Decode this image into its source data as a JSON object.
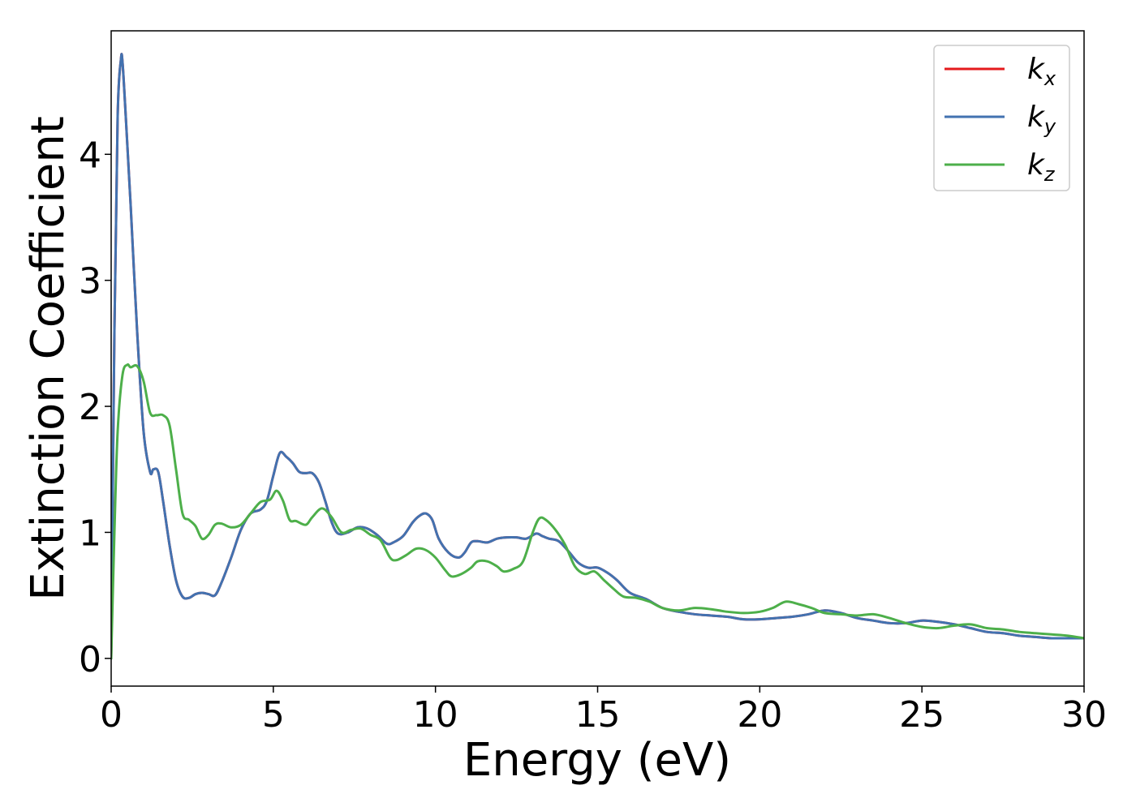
{
  "chart_data": {
    "type": "line",
    "xlabel": "Energy (eV)",
    "ylabel": "Extinction Coefficient",
    "xlim": [
      0,
      30
    ],
    "ylim": [
      -0.22,
      4.98
    ],
    "xticks": [
      "0",
      "5",
      "10",
      "15",
      "20",
      "25",
      "30"
    ],
    "yticks": [
      "0",
      "1",
      "2",
      "3",
      "4"
    ],
    "grid": false,
    "legend_position": "top-right",
    "series": [
      {
        "name": "k",
        "subscript": "x",
        "color": "#e41a1c",
        "x": [
          0,
          0.1,
          0.2,
          0.3,
          0.35,
          0.45,
          0.6,
          0.8,
          1.0,
          1.2,
          1.3,
          1.45,
          1.6,
          1.8,
          2.0,
          2.2,
          2.4,
          2.6,
          2.8,
          3.0,
          3.2,
          3.4,
          3.7,
          4.0,
          4.3,
          4.6,
          4.8,
          5.0,
          5.2,
          5.4,
          5.6,
          5.8,
          6.0,
          6.2,
          6.4,
          6.6,
          6.8,
          7.0,
          7.3,
          7.6,
          7.9,
          8.2,
          8.5,
          8.7,
          9.0,
          9.3,
          9.5,
          9.7,
          9.9,
          10.1,
          10.4,
          10.7,
          10.9,
          11.1,
          11.3,
          11.6,
          11.9,
          12.2,
          12.5,
          12.8,
          13.1,
          13.3,
          13.5,
          13.8,
          14.1,
          14.4,
          14.7,
          15.0,
          15.3,
          15.6,
          16.0,
          16.5,
          17.0,
          17.5,
          18.0,
          18.5,
          19.0,
          19.5,
          20.0,
          20.5,
          21.0,
          21.5,
          22.0,
          22.5,
          23.0,
          23.5,
          24.0,
          24.5,
          25.0,
          25.5,
          26.0,
          26.5,
          27.0,
          27.5,
          28.0,
          28.5,
          29.0,
          29.5,
          30.0
        ],
        "y": [
          0.0,
          2.6,
          4.3,
          4.75,
          4.73,
          4.3,
          3.6,
          2.6,
          1.8,
          1.48,
          1.5,
          1.48,
          1.25,
          0.9,
          0.62,
          0.49,
          0.48,
          0.51,
          0.52,
          0.51,
          0.5,
          0.6,
          0.8,
          1.02,
          1.15,
          1.18,
          1.25,
          1.45,
          1.63,
          1.6,
          1.55,
          1.48,
          1.47,
          1.47,
          1.4,
          1.25,
          1.08,
          0.99,
          1.0,
          1.04,
          1.03,
          0.98,
          0.91,
          0.92,
          0.97,
          1.08,
          1.13,
          1.15,
          1.1,
          0.95,
          0.84,
          0.8,
          0.84,
          0.92,
          0.93,
          0.92,
          0.95,
          0.96,
          0.96,
          0.95,
          0.99,
          0.97,
          0.95,
          0.93,
          0.85,
          0.76,
          0.72,
          0.72,
          0.68,
          0.62,
          0.52,
          0.47,
          0.4,
          0.37,
          0.35,
          0.34,
          0.33,
          0.31,
          0.31,
          0.32,
          0.33,
          0.35,
          0.38,
          0.36,
          0.32,
          0.3,
          0.28,
          0.28,
          0.3,
          0.29,
          0.27,
          0.24,
          0.21,
          0.2,
          0.18,
          0.17,
          0.16,
          0.16,
          0.16
        ]
      },
      {
        "name": "k",
        "subscript": "y",
        "color": "#4272b0",
        "x": [
          0,
          0.1,
          0.2,
          0.3,
          0.35,
          0.45,
          0.6,
          0.8,
          1.0,
          1.2,
          1.3,
          1.45,
          1.6,
          1.8,
          2.0,
          2.2,
          2.4,
          2.6,
          2.8,
          3.0,
          3.2,
          3.4,
          3.7,
          4.0,
          4.3,
          4.6,
          4.8,
          5.0,
          5.2,
          5.4,
          5.6,
          5.8,
          6.0,
          6.2,
          6.4,
          6.6,
          6.8,
          7.0,
          7.3,
          7.6,
          7.9,
          8.2,
          8.5,
          8.7,
          9.0,
          9.3,
          9.5,
          9.7,
          9.9,
          10.1,
          10.4,
          10.7,
          10.9,
          11.1,
          11.3,
          11.6,
          11.9,
          12.2,
          12.5,
          12.8,
          13.1,
          13.3,
          13.5,
          13.8,
          14.1,
          14.4,
          14.7,
          15.0,
          15.3,
          15.6,
          16.0,
          16.5,
          17.0,
          17.5,
          18.0,
          18.5,
          19.0,
          19.5,
          20.0,
          20.5,
          21.0,
          21.5,
          22.0,
          22.5,
          23.0,
          23.5,
          24.0,
          24.5,
          25.0,
          25.5,
          26.0,
          26.5,
          27.0,
          27.5,
          28.0,
          28.5,
          29.0,
          29.5,
          30.0
        ],
        "y": [
          0.0,
          2.6,
          4.3,
          4.75,
          4.73,
          4.3,
          3.6,
          2.6,
          1.8,
          1.48,
          1.5,
          1.48,
          1.25,
          0.9,
          0.62,
          0.49,
          0.48,
          0.51,
          0.52,
          0.51,
          0.5,
          0.6,
          0.8,
          1.02,
          1.15,
          1.18,
          1.25,
          1.45,
          1.63,
          1.6,
          1.55,
          1.48,
          1.47,
          1.47,
          1.4,
          1.25,
          1.08,
          0.99,
          1.0,
          1.04,
          1.03,
          0.98,
          0.91,
          0.92,
          0.97,
          1.08,
          1.13,
          1.15,
          1.1,
          0.95,
          0.84,
          0.8,
          0.84,
          0.92,
          0.93,
          0.92,
          0.95,
          0.96,
          0.96,
          0.95,
          0.99,
          0.97,
          0.95,
          0.93,
          0.85,
          0.76,
          0.72,
          0.72,
          0.68,
          0.62,
          0.52,
          0.47,
          0.4,
          0.37,
          0.35,
          0.34,
          0.33,
          0.31,
          0.31,
          0.32,
          0.33,
          0.35,
          0.38,
          0.36,
          0.32,
          0.3,
          0.28,
          0.28,
          0.3,
          0.29,
          0.27,
          0.24,
          0.21,
          0.2,
          0.18,
          0.17,
          0.16,
          0.16,
          0.16
        ]
      },
      {
        "name": "k",
        "subscript": "z",
        "color": "#4daf4a",
        "x": [
          0,
          0.1,
          0.2,
          0.35,
          0.5,
          0.6,
          0.8,
          1.0,
          1.2,
          1.4,
          1.6,
          1.8,
          2.0,
          2.2,
          2.4,
          2.6,
          2.8,
          3.0,
          3.2,
          3.4,
          3.7,
          4.0,
          4.3,
          4.6,
          4.9,
          5.1,
          5.3,
          5.5,
          5.7,
          6.0,
          6.2,
          6.5,
          6.8,
          7.1,
          7.4,
          7.7,
          8.0,
          8.3,
          8.6,
          8.8,
          9.1,
          9.4,
          9.7,
          10.0,
          10.3,
          10.5,
          10.8,
          11.1,
          11.3,
          11.6,
          11.9,
          12.1,
          12.4,
          12.7,
          13.0,
          13.2,
          13.4,
          13.7,
          14.0,
          14.3,
          14.6,
          14.9,
          15.2,
          15.5,
          15.8,
          16.2,
          16.6,
          17.0,
          17.5,
          18.0,
          18.5,
          19.0,
          19.5,
          20.0,
          20.4,
          20.8,
          21.2,
          21.6,
          22.0,
          22.5,
          23.0,
          23.5,
          24.0,
          24.5,
          25.0,
          25.5,
          26.0,
          26.5,
          27.0,
          27.5,
          28.0,
          28.5,
          29.0,
          29.5,
          30.0
        ],
        "y": [
          0.0,
          1.0,
          1.8,
          2.25,
          2.33,
          2.31,
          2.32,
          2.2,
          1.95,
          1.93,
          1.93,
          1.85,
          1.5,
          1.15,
          1.1,
          1.05,
          0.95,
          0.98,
          1.06,
          1.07,
          1.04,
          1.06,
          1.15,
          1.24,
          1.26,
          1.33,
          1.25,
          1.1,
          1.09,
          1.06,
          1.12,
          1.19,
          1.12,
          1.0,
          1.02,
          1.03,
          0.98,
          0.94,
          0.8,
          0.78,
          0.82,
          0.87,
          0.86,
          0.8,
          0.7,
          0.65,
          0.67,
          0.72,
          0.77,
          0.77,
          0.73,
          0.69,
          0.71,
          0.77,
          1.0,
          1.11,
          1.1,
          1.02,
          0.9,
          0.73,
          0.67,
          0.69,
          0.62,
          0.55,
          0.49,
          0.48,
          0.45,
          0.4,
          0.38,
          0.4,
          0.39,
          0.37,
          0.36,
          0.37,
          0.4,
          0.45,
          0.43,
          0.4,
          0.36,
          0.35,
          0.34,
          0.35,
          0.32,
          0.28,
          0.25,
          0.24,
          0.26,
          0.27,
          0.24,
          0.23,
          0.21,
          0.2,
          0.19,
          0.18,
          0.16
        ]
      }
    ]
  }
}
